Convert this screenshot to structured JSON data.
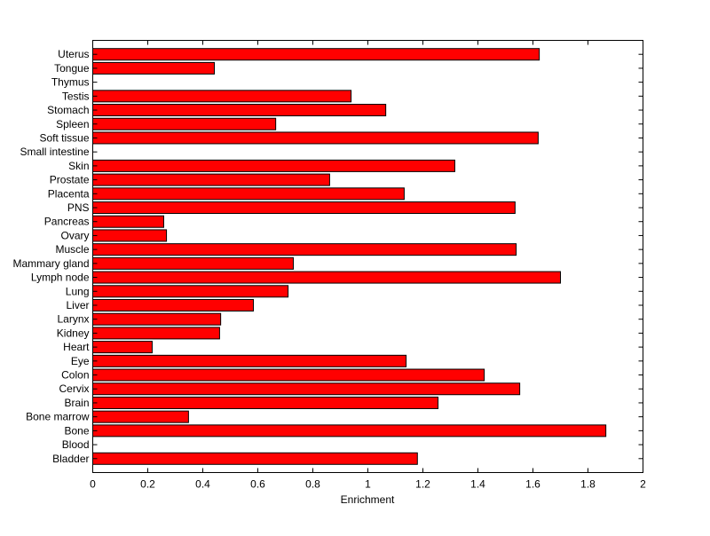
{
  "chart_data": {
    "type": "bar",
    "orientation": "horizontal",
    "title": "",
    "xlabel": "Enrichment",
    "ylabel": "",
    "xlim": [
      0,
      2
    ],
    "xticks": [
      "0",
      "0.2",
      "0.4",
      "0.6",
      "0.8",
      "1",
      "1.2",
      "1.4",
      "1.6",
      "1.8",
      "2"
    ],
    "grid": false,
    "bar_color": "#ff0000",
    "categories": [
      "Bladder",
      "Blood",
      "Bone",
      "Bone marrow",
      "Brain",
      "Cervix",
      "Colon",
      "Eye",
      "Heart",
      "Kidney",
      "Larynx",
      "Liver",
      "Lung",
      "Lymph node",
      "Mammary gland",
      "Muscle",
      "Ovary",
      "Pancreas",
      "PNS",
      "Placenta",
      "Prostate",
      "Skin",
      "Small intestine",
      "Soft tissue",
      "Spleen",
      "Stomach",
      "Testis",
      "Thymus",
      "Tongue",
      "Uterus"
    ],
    "values": [
      1.18,
      0,
      1.865,
      0.348,
      1.255,
      1.552,
      1.423,
      1.139,
      0.216,
      0.461,
      0.465,
      0.584,
      0.71,
      1.7,
      0.729,
      1.539,
      0.268,
      0.258,
      1.535,
      1.132,
      0.861,
      1.316,
      0,
      1.619,
      0.665,
      1.065,
      0.939,
      0,
      0.442,
      1.623
    ]
  }
}
